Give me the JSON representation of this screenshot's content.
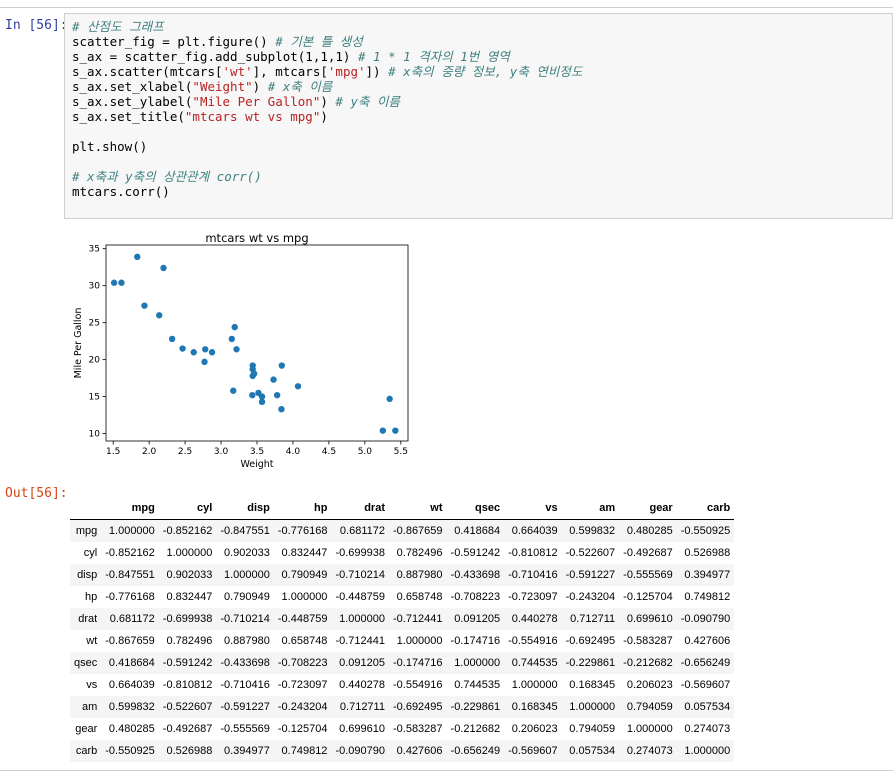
{
  "in_prompt": "In [56]:",
  "out_prompt": "Out[56]:",
  "code_lines": [
    [
      {
        "t": "# 산점도 그래프",
        "c": "cm"
      }
    ],
    [
      {
        "t": "scatter_fig = plt.figure() "
      },
      {
        "t": "# 기본 틀 생성",
        "c": "cm"
      }
    ],
    [
      {
        "t": "s_ax = scatter_fig.add_subplot(1,1,1) "
      },
      {
        "t": "# 1 * 1 격자의 1번 영역",
        "c": "cm"
      }
    ],
    [
      {
        "t": "s_ax.scatter(mtcars["
      },
      {
        "t": "'wt'",
        "c": "st"
      },
      {
        "t": "], mtcars["
      },
      {
        "t": "'mpg'",
        "c": "st"
      },
      {
        "t": "]) "
      },
      {
        "t": "# x축의 중량 정보, y축 연비정도",
        "c": "cm"
      }
    ],
    [
      {
        "t": "s_ax.set_xlabel("
      },
      {
        "t": "\"Weight\"",
        "c": "st"
      },
      {
        "t": ") "
      },
      {
        "t": "# x축 이름",
        "c": "cm"
      }
    ],
    [
      {
        "t": "s_ax.set_ylabel("
      },
      {
        "t": "\"Mile Per Gallon\"",
        "c": "st"
      },
      {
        "t": ") "
      },
      {
        "t": "# y축 이름",
        "c": "cm"
      }
    ],
    [
      {
        "t": "s_ax.set_title("
      },
      {
        "t": "\"mtcars wt vs mpg\"",
        "c": "st"
      },
      {
        "t": ")"
      }
    ],
    [],
    [
      {
        "t": "plt.show()"
      }
    ],
    [],
    [
      {
        "t": "# x축과 y축의 상관관계 corr()",
        "c": "cm"
      }
    ],
    [
      {
        "t": "mtcars.corr()"
      }
    ]
  ],
  "chart_data": {
    "type": "scatter",
    "title": "mtcars wt vs mpg",
    "xlabel": "Weight",
    "ylabel": "Mile Per Gallon",
    "xlim": [
      1.4,
      5.6
    ],
    "ylim": [
      9,
      35.5
    ],
    "xticks": [
      "1.5",
      "2.0",
      "2.5",
      "3.0",
      "3.5",
      "4.0",
      "4.5",
      "5.0",
      "5.5"
    ],
    "yticks": [
      "10",
      "15",
      "20",
      "25",
      "30",
      "35"
    ],
    "grid": false,
    "point_color": "#1f77b4",
    "points": [
      [
        2.62,
        21.0
      ],
      [
        2.875,
        21.0
      ],
      [
        2.32,
        22.8
      ],
      [
        3.215,
        21.4
      ],
      [
        3.44,
        18.7
      ],
      [
        3.46,
        18.1
      ],
      [
        3.57,
        14.3
      ],
      [
        3.19,
        24.4
      ],
      [
        3.15,
        22.8
      ],
      [
        3.44,
        19.2
      ],
      [
        3.44,
        17.8
      ],
      [
        4.07,
        16.4
      ],
      [
        3.73,
        17.3
      ],
      [
        3.78,
        15.2
      ],
      [
        5.25,
        10.4
      ],
      [
        5.424,
        10.4
      ],
      [
        5.345,
        14.7
      ],
      [
        2.2,
        32.4
      ],
      [
        1.615,
        30.4
      ],
      [
        1.835,
        33.9
      ],
      [
        2.465,
        21.5
      ],
      [
        3.52,
        15.5
      ],
      [
        3.435,
        15.2
      ],
      [
        3.84,
        13.3
      ],
      [
        3.845,
        19.2
      ],
      [
        1.935,
        27.3
      ],
      [
        2.14,
        26.0
      ],
      [
        1.513,
        30.4
      ],
      [
        3.17,
        15.8
      ],
      [
        2.77,
        19.7
      ],
      [
        3.57,
        15.0
      ],
      [
        2.78,
        21.4
      ]
    ]
  },
  "table": {
    "columns": [
      "mpg",
      "cyl",
      "disp",
      "hp",
      "drat",
      "wt",
      "qsec",
      "vs",
      "am",
      "gear",
      "carb"
    ],
    "rows": [
      {
        "index": "mpg",
        "values": [
          "1.000000",
          "-0.852162",
          "-0.847551",
          "-0.776168",
          "0.681172",
          "-0.867659",
          "0.418684",
          "0.664039",
          "0.599832",
          "0.480285",
          "-0.550925"
        ]
      },
      {
        "index": "cyl",
        "values": [
          "-0.852162",
          "1.000000",
          "0.902033",
          "0.832447",
          "-0.699938",
          "0.782496",
          "-0.591242",
          "-0.810812",
          "-0.522607",
          "-0.492687",
          "0.526988"
        ]
      },
      {
        "index": "disp",
        "values": [
          "-0.847551",
          "0.902033",
          "1.000000",
          "0.790949",
          "-0.710214",
          "0.887980",
          "-0.433698",
          "-0.710416",
          "-0.591227",
          "-0.555569",
          "0.394977"
        ]
      },
      {
        "index": "hp",
        "values": [
          "-0.776168",
          "0.832447",
          "0.790949",
          "1.000000",
          "-0.448759",
          "0.658748",
          "-0.708223",
          "-0.723097",
          "-0.243204",
          "-0.125704",
          "0.749812"
        ]
      },
      {
        "index": "drat",
        "values": [
          "0.681172",
          "-0.699938",
          "-0.710214",
          "-0.448759",
          "1.000000",
          "-0.712441",
          "0.091205",
          "0.440278",
          "0.712711",
          "0.699610",
          "-0.090790"
        ]
      },
      {
        "index": "wt",
        "values": [
          "-0.867659",
          "0.782496",
          "0.887980",
          "0.658748",
          "-0.712441",
          "1.000000",
          "-0.174716",
          "-0.554916",
          "-0.692495",
          "-0.583287",
          "0.427606"
        ]
      },
      {
        "index": "qsec",
        "values": [
          "0.418684",
          "-0.591242",
          "-0.433698",
          "-0.708223",
          "0.091205",
          "-0.174716",
          "1.000000",
          "0.744535",
          "-0.229861",
          "-0.212682",
          "-0.656249"
        ]
      },
      {
        "index": "vs",
        "values": [
          "0.664039",
          "-0.810812",
          "-0.710416",
          "-0.723097",
          "0.440278",
          "-0.554916",
          "0.744535",
          "1.000000",
          "0.168345",
          "0.206023",
          "-0.569607"
        ]
      },
      {
        "index": "am",
        "values": [
          "0.599832",
          "-0.522607",
          "-0.591227",
          "-0.243204",
          "0.712711",
          "-0.692495",
          "-0.229861",
          "0.168345",
          "1.000000",
          "0.794059",
          "0.057534"
        ]
      },
      {
        "index": "gear",
        "values": [
          "0.480285",
          "-0.492687",
          "-0.555569",
          "-0.125704",
          "0.699610",
          "-0.583287",
          "-0.212682",
          "0.206023",
          "0.794059",
          "1.000000",
          "0.274073"
        ]
      },
      {
        "index": "carb",
        "values": [
          "-0.550925",
          "0.526988",
          "0.394977",
          "0.749812",
          "-0.090790",
          "0.427606",
          "-0.656249",
          "-0.569607",
          "0.057534",
          "0.274073",
          "1.000000"
        ]
      }
    ]
  }
}
